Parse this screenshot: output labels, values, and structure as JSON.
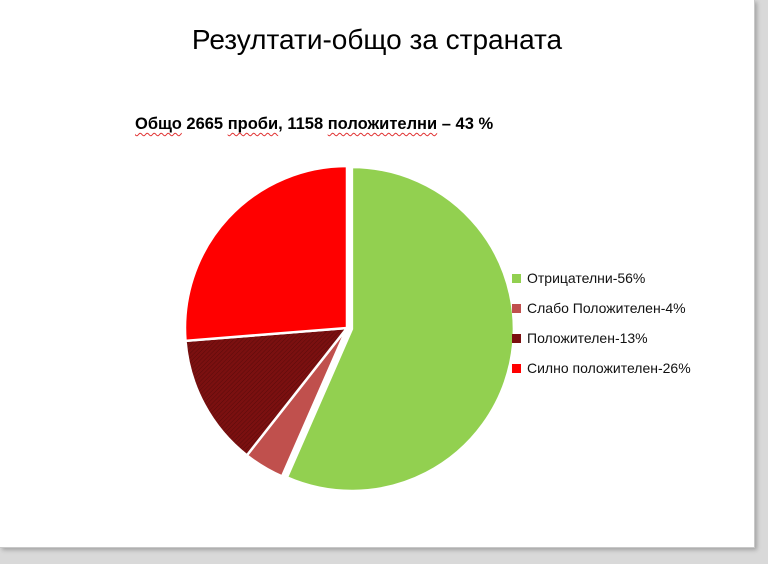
{
  "slide": {
    "title": "Резултати-общо за страната",
    "subtitle": {
      "w1": "Общо",
      "s1": " 2665 ",
      "w2": "проби",
      "s2": ", 1158 ",
      "w3": "положителни",
      "s3": " – 43 %"
    }
  },
  "chart_data": {
    "type": "pie",
    "title": "",
    "legend_position": "right",
    "labels": [
      "Отрицателни-56%",
      "Слабо Положителен-4%",
      "Положителен-13%",
      "Силно положителен-26%"
    ],
    "values": [
      56,
      4,
      13,
      26
    ],
    "colors": [
      "#92d050",
      "#c0504d",
      "#7b1010",
      "#ff0000"
    ],
    "exploded_slice": 0
  }
}
